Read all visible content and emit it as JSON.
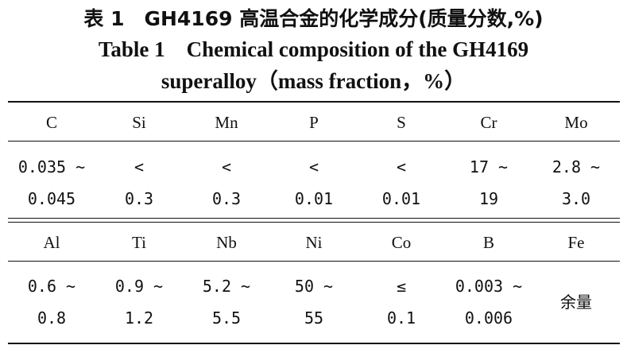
{
  "caption": {
    "zh": "表 1　GH4169 高温合金的化学成分(质量分数,%)",
    "en_line1": "Table 1　Chemical composition of the GH4169",
    "en_line2": "superalloy（mass fraction，%）"
  },
  "table": {
    "part1": {
      "headers": [
        "C",
        "Si",
        "Mn",
        "P",
        "S",
        "Cr",
        "Mo"
      ],
      "values": [
        [
          "0.035 ~",
          "0.045"
        ],
        [
          "<",
          "0.3"
        ],
        [
          "<",
          "0.3"
        ],
        [
          "<",
          "0.01"
        ],
        [
          "<",
          "0.01"
        ],
        [
          "17 ~",
          "19"
        ],
        [
          "2.8 ~",
          "3.0"
        ]
      ]
    },
    "part2": {
      "headers": [
        "Al",
        "Ti",
        "Nb",
        "Ni",
        "Co",
        "B",
        "Fe"
      ],
      "values": [
        [
          "0.6 ~",
          "0.8"
        ],
        [
          "0.9 ~",
          "1.2"
        ],
        [
          "5.2 ~",
          "5.5"
        ],
        [
          "50 ~",
          "55"
        ],
        [
          "≤",
          "0.1"
        ],
        [
          "0.003 ~",
          "0.006"
        ],
        [
          "余量"
        ]
      ]
    }
  }
}
